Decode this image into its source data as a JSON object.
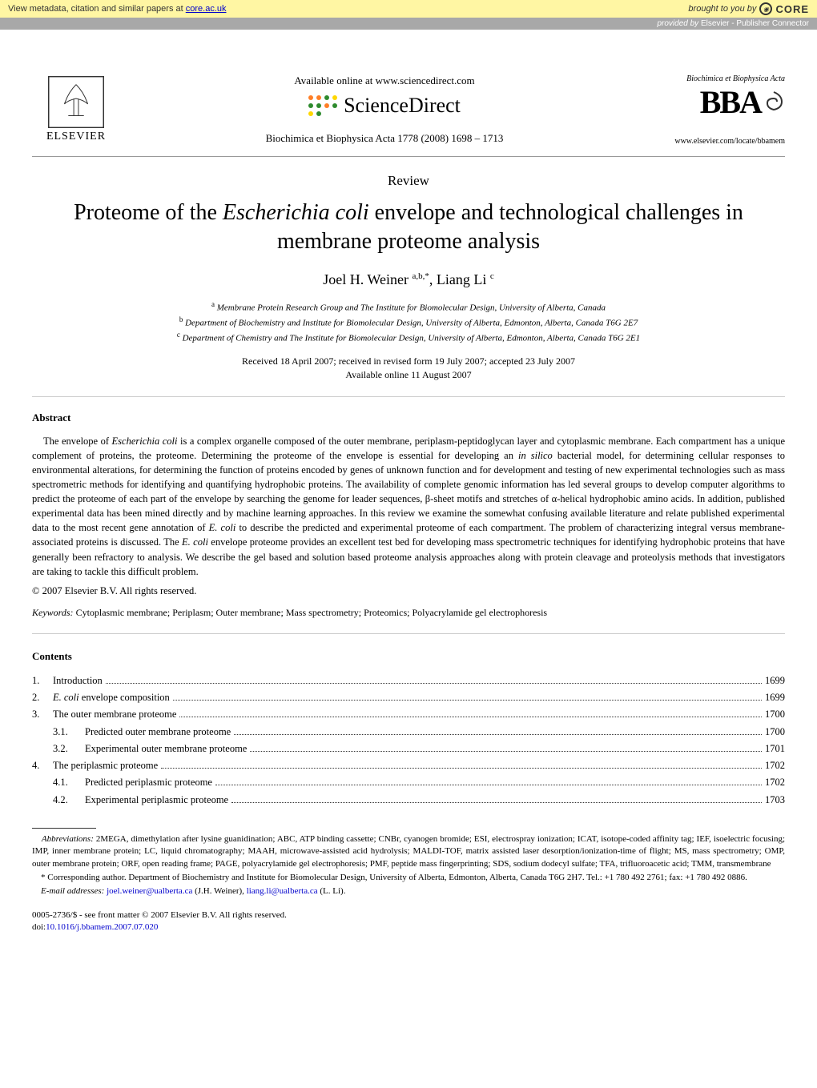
{
  "core_banner": {
    "left_prefix": "View metadata, citation and similar papers at ",
    "left_link": "core.ac.uk",
    "right_prefix": "brought to you by ",
    "brand": "CORE"
  },
  "provider_bar": {
    "prefix": "provided by ",
    "text": "Elsevier - Publisher Connector"
  },
  "header": {
    "elsevier": "ELSEVIER",
    "available_online": "Available online at www.sciencedirect.com",
    "sciencedirect": "ScienceDirect",
    "journal_ref": "Biochimica et Biophysica Acta 1778 (2008) 1698 – 1713",
    "bba_header": "Biochimica et Biophysica Acta",
    "bba_big": "BBA",
    "bba_url": "www.elsevier.com/locate/bbamem",
    "sd_dot_colors": [
      "#ff7f27",
      "#ff7f27",
      "#2e8b2e",
      "#ffd700",
      "#2e8b2e",
      "#2e8b2e",
      "#ff7f27",
      "#2e8b2e",
      "#ffd700",
      "#2e8b2e"
    ]
  },
  "article": {
    "type": "Review",
    "title_pre": "Proteome of the ",
    "title_italic": "Escherichia coli",
    "title_post": " envelope and technological challenges in membrane proteome analysis",
    "authors": "Joel H. Weiner ",
    "author_sup1": "a,b,",
    "author_star": "*",
    "author_sep": ", Liang Li ",
    "author_sup2": "c"
  },
  "affiliations": {
    "a": "Membrane Protein Research Group and The Institute for Biomolecular Design, University of Alberta, Canada",
    "b": "Department of Biochemistry and Institute for Biomolecular Design, University of Alberta, Edmonton, Alberta, Canada T6G 2E7",
    "c": "Department of Chemistry and The Institute for Biomolecular Design, University of Alberta, Edmonton, Alberta, Canada T6G 2E1"
  },
  "dates": {
    "line1": "Received 18 April 2007; received in revised form 19 July 2007; accepted 23 July 2007",
    "line2": "Available online 11 August 2007"
  },
  "abstract": {
    "heading": "Abstract",
    "text1": "The envelope of ",
    "italic1": "Escherichia coli",
    "text2": " is a complex organelle composed of the outer membrane, periplasm-peptidoglycan layer and cytoplasmic membrane. Each compartment has a unique complement of proteins, the proteome. Determining the proteome of the envelope is essential for developing an ",
    "italic2": "in silico",
    "text3": " bacterial model, for determining cellular responses to environmental alterations, for determining the function of proteins encoded by genes of unknown function and for development and testing of new experimental technologies such as mass spectrometric methods for identifying and quantifying hydrophobic proteins. The availability of complete genomic information has led several groups to develop computer algorithms to predict the proteome of each part of the envelope by searching the genome for leader sequences, β-sheet motifs and stretches of α-helical hydrophobic amino acids. In addition, published experimental data has been mined directly and by machine learning approaches. In this review we examine the somewhat confusing available literature and relate published experimental data to the most recent gene annotation of ",
    "italic3": "E. coli",
    "text4": " to describe the predicted and experimental proteome of each compartment. The problem of characterizing integral versus membrane-associated proteins is discussed. The ",
    "italic4": "E. coli",
    "text5": " envelope proteome provides an excellent test bed for developing mass spectrometric techniques for identifying hydrophobic proteins that have generally been refractory to analysis. We describe the gel based and solution based proteome analysis approaches along with protein cleavage and proteolysis methods that investigators are taking to tackle this difficult problem.",
    "copyright": "© 2007 Elsevier B.V. All rights reserved."
  },
  "keywords": {
    "label": "Keywords:",
    "text": " Cytoplasmic membrane; Periplasm; Outer membrane; Mass spectrometry; Proteomics; Polyacrylamide gel electrophoresis"
  },
  "contents": {
    "heading": "Contents",
    "items": [
      {
        "num": "1.",
        "title": "Introduction",
        "page": "1699",
        "level": 0
      },
      {
        "num": "2.",
        "title_pre": "",
        "title_italic": "E. coli",
        "title_post": " envelope composition",
        "page": "1699",
        "level": 0
      },
      {
        "num": "3.",
        "title": "The outer membrane proteome",
        "page": "1700",
        "level": 0
      },
      {
        "num": "3.1.",
        "title": "Predicted outer membrane proteome",
        "page": "1700",
        "level": 1
      },
      {
        "num": "3.2.",
        "title": "Experimental outer membrane proteome",
        "page": "1701",
        "level": 1
      },
      {
        "num": "4.",
        "title": "The periplasmic proteome",
        "page": "1702",
        "level": 0
      },
      {
        "num": "4.1.",
        "title": "Predicted periplasmic proteome",
        "page": "1702",
        "level": 1
      },
      {
        "num": "4.2.",
        "title": "Experimental periplasmic proteome",
        "page": "1703",
        "level": 1
      }
    ]
  },
  "footnotes": {
    "abbrev_label": "Abbreviations:",
    "abbrev_text": " 2MEGA, dimethylation after lysine guanidination; ABC, ATP binding cassette; CNBr, cyanogen bromide; ESI, electrospray ionization; ICAT, isotope-coded affinity tag; IEF, isoelectric focusing; IMP, inner membrane protein; LC, liquid chromatography; MAAH, microwave-assisted acid hydrolysis; MALDI-TOF, matrix assisted laser desorption/ionization-time of flight; MS, mass spectrometry; OMP, outer membrane protein; ORF, open reading frame; PAGE, polyacrylamide gel electrophoresis; PMF, peptide mass fingerprinting; SDS, sodium dodecyl sulfate; TFA, trifluoroacetic acid; TMM, transmembrane",
    "corr_star": "*",
    "corr_text": " Corresponding author. Department of Biochemistry and Institute for Biomolecular Design, University of Alberta, Edmonton, Alberta, Canada T6G 2H7. Tel.: +1 780 492 2761; fax: +1 780 492 0886.",
    "email_label": "E-mail addresses:",
    "email1": "joel.weiner@ualberta.ca",
    "email1_paren": " (J.H. Weiner), ",
    "email2": "liang.li@ualberta.ca",
    "email2_paren": " (L. Li)."
  },
  "bottom": {
    "issn": "0005-2736/$ - see front matter © 2007 Elsevier B.V. All rights reserved.",
    "doi_label": "doi:",
    "doi": "10.1016/j.bbamem.2007.07.020"
  }
}
